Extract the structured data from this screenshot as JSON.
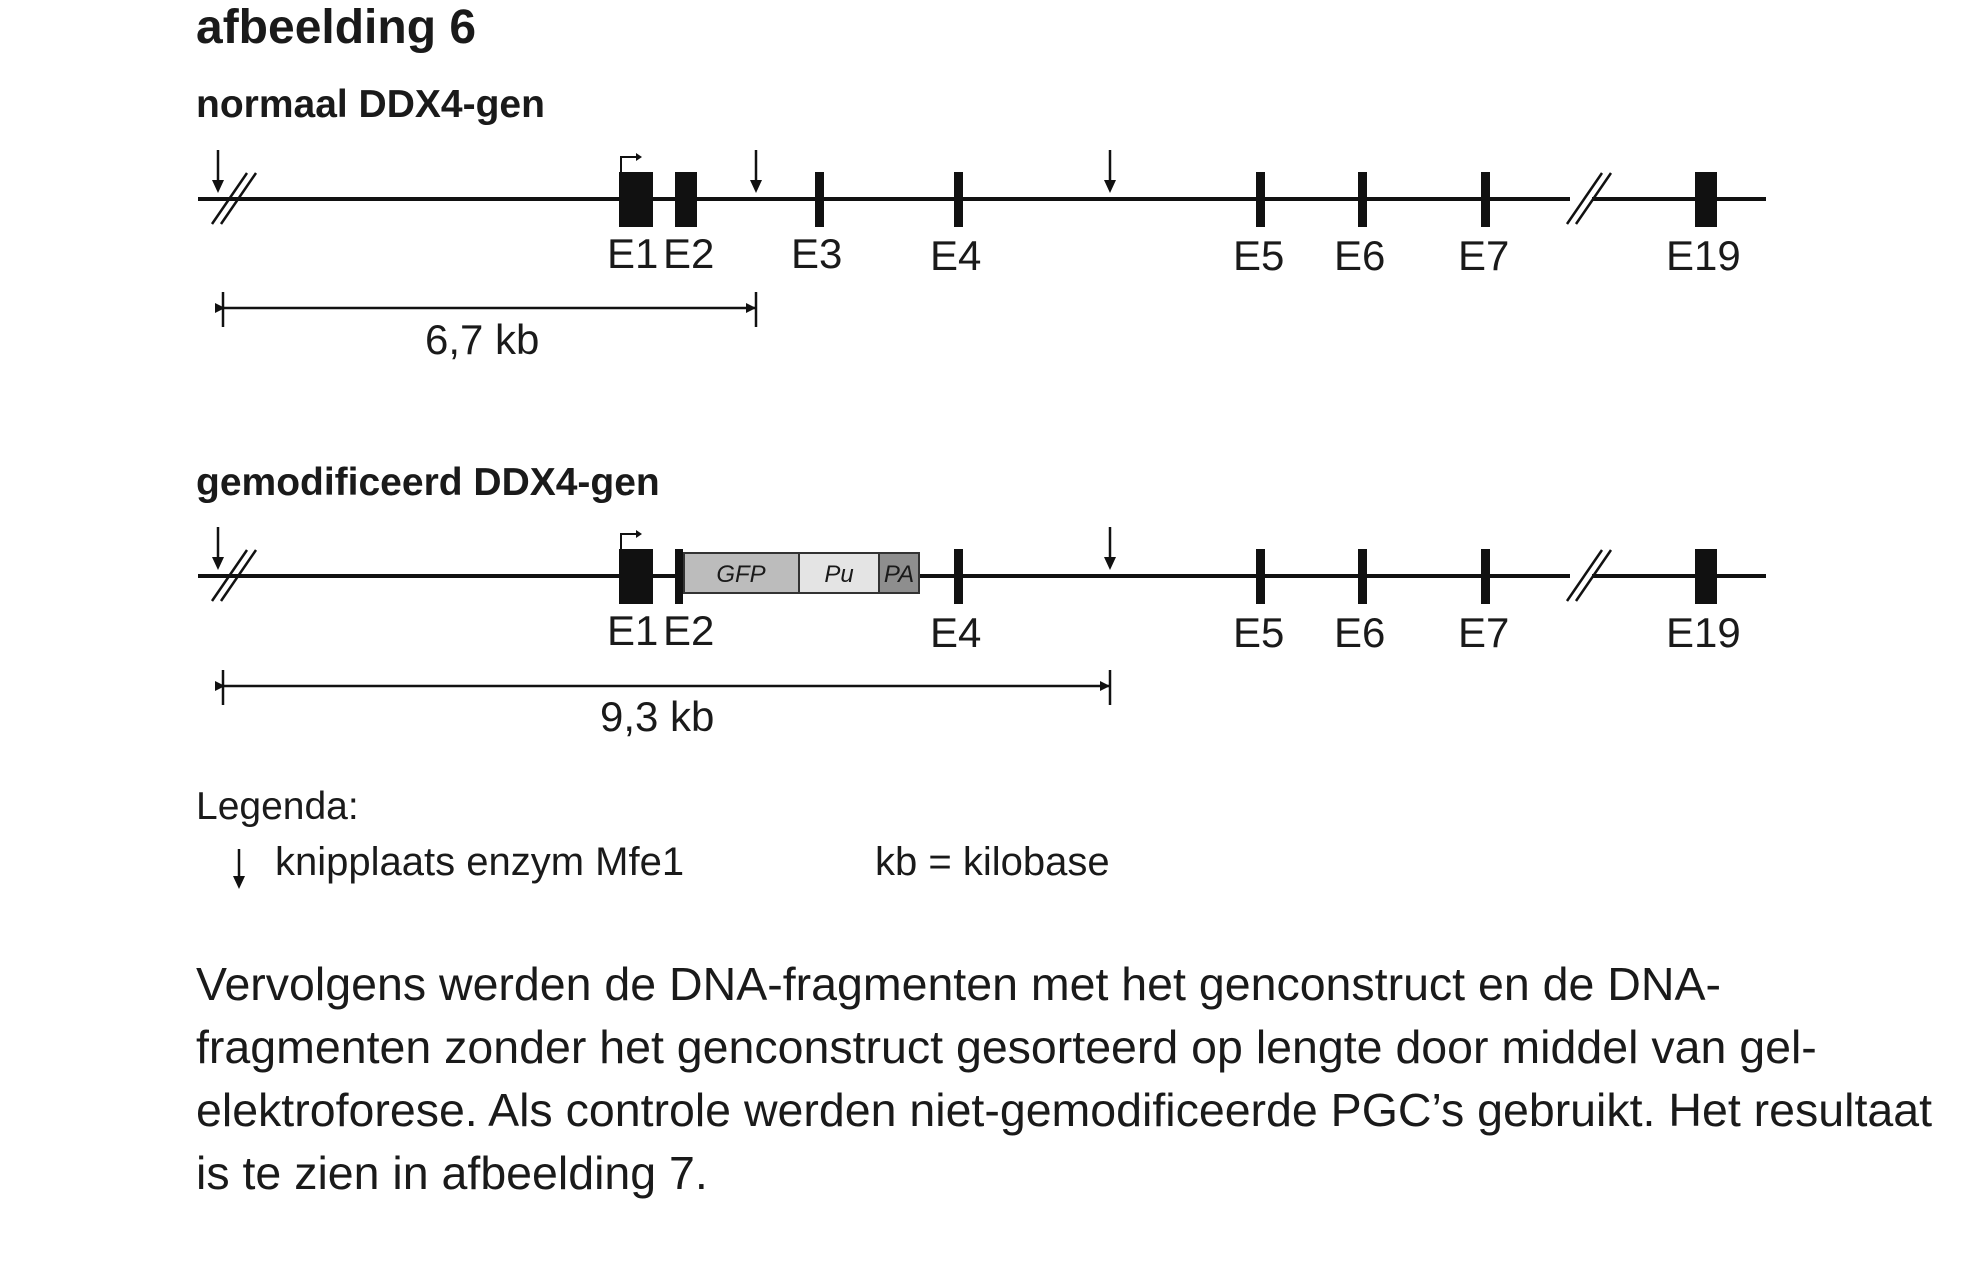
{
  "figure_title": "afbeelding 6",
  "panels": {
    "normal": {
      "title": "normaal DDX4-gen",
      "exons": [
        "E1",
        "E2",
        "E3",
        "E4",
        "E5",
        "E6",
        "E7",
        "E19"
      ],
      "fragment_label": "6,7 kb"
    },
    "modified": {
      "title": "gemodificeerd DDX4-gen",
      "exons": [
        "E1",
        "E2",
        "E4",
        "E5",
        "E6",
        "E7",
        "E19"
      ],
      "construct": [
        "GFP",
        "Pu",
        "PA"
      ],
      "fragment_label": "9,3 kb"
    }
  },
  "legend": {
    "title": "Legenda:",
    "cut_site": "knipplaats enzym Mfe1",
    "kb": "kb = kilobase"
  },
  "body_text": "Vervolgens werden de DNA-fragmenten met het genconstruct en de DNA-fragmenten zonder het genconstruct gesorteerd op lengte door middel van gel-elektroforese. Als controle werden niet-gemodificeerde PGC’s gebruikt. Het resultaat is te zien in afbeelding 7."
}
